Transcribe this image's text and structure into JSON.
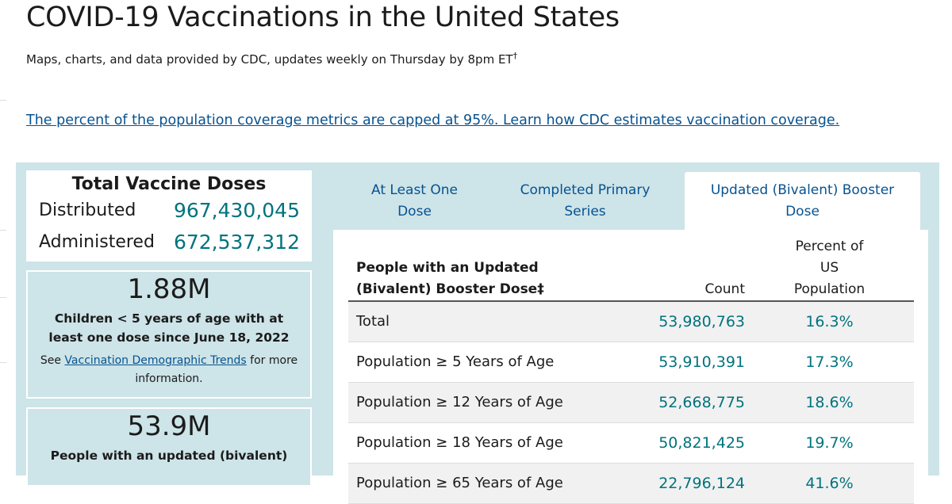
{
  "header": {
    "title": "COVID-19 Vaccinations in the United States",
    "subtitle": "Maps, charts, and data provided by CDC, updates weekly on Thursday by 8pm ET",
    "subtitle_mark": "†",
    "coverage_link": "The percent of the population coverage metrics are capped at 95%. Learn how CDC estimates vaccination coverage."
  },
  "totals": {
    "title": "Total Vaccine Doses",
    "rows": [
      {
        "label": "Distributed",
        "value": "967,430,045"
      },
      {
        "label": "Administered",
        "value": "672,537,312"
      }
    ]
  },
  "cards": [
    {
      "big": "1.88M",
      "desc": "Children < 5 years of age with at least one dose since June 18, 2022",
      "note_prefix": "See ",
      "note_link": "Vaccination Demographic Trends",
      "note_suffix": " for more information."
    },
    {
      "big": "53.9M",
      "desc": "People with an updated (bivalent)"
    }
  ],
  "tabs": [
    {
      "label": "At Least One Dose",
      "active": false
    },
    {
      "label": "Completed Primary Series",
      "active": false
    },
    {
      "label": "Updated (Bivalent) Booster Dose",
      "active": true
    }
  ],
  "table": {
    "headers": [
      "People with an Updated (Bivalent) Booster Dose‡",
      "Count",
      "Percent of US Population"
    ],
    "rows": [
      {
        "name": "Total",
        "count": "53,980,763",
        "pct": "16.3%"
      },
      {
        "name": "Population ≥ 5 Years of Age",
        "count": "53,910,391",
        "pct": "17.3%"
      },
      {
        "name": "Population ≥ 12 Years of Age",
        "count": "52,668,775",
        "pct": "18.6%"
      },
      {
        "name": "Population ≥ 18 Years of Age",
        "count": "50,821,425",
        "pct": "19.7%"
      },
      {
        "name": "Population ≥ 65 Years of Age",
        "count": "22,796,124",
        "pct": "41.6%"
      }
    ]
  },
  "colors": {
    "panel": "#cde4e8",
    "accent": "#00737d",
    "link": "#075290"
  }
}
